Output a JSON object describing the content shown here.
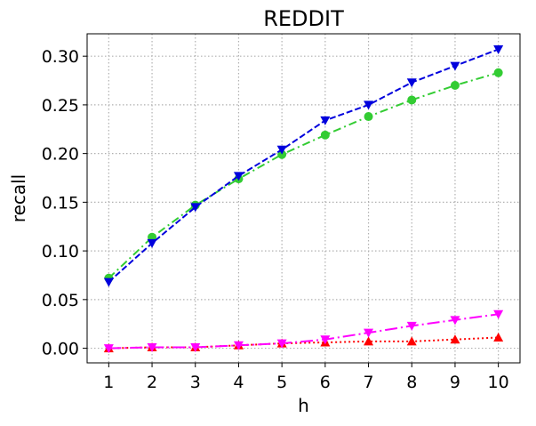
{
  "chart_data": {
    "type": "line",
    "title": "REDDIT",
    "xlabel": "h",
    "ylabel": "recall",
    "x": [
      1,
      2,
      3,
      4,
      5,
      6,
      7,
      8,
      9,
      10
    ],
    "xlim": [
      0.5,
      10.5
    ],
    "ylim": [
      -0.015,
      0.323
    ],
    "yticks": [
      0.0,
      0.05,
      0.1,
      0.15,
      0.2,
      0.25,
      0.3
    ],
    "ytick_labels": [
      "0.00",
      "0.05",
      "0.10",
      "0.15",
      "0.20",
      "0.25",
      "0.30"
    ],
    "xtick_labels": [
      "1",
      "2",
      "3",
      "4",
      "5",
      "6",
      "7",
      "8",
      "9",
      "10"
    ],
    "grid": true,
    "legend": "none",
    "series": [
      {
        "values": [
          0.072,
          0.114,
          0.147,
          0.174,
          0.199,
          0.219,
          0.238,
          0.255,
          0.27,
          0.283
        ],
        "color": "#33cc33",
        "marker": "circle",
        "dash": "dash-dot"
      },
      {
        "values": [
          0.068,
          0.108,
          0.145,
          0.177,
          0.204,
          0.234,
          0.25,
          0.273,
          0.29,
          0.307
        ],
        "color": "#0000dd",
        "marker": "triangle-down",
        "dash": "dashed"
      },
      {
        "values": [
          0.0,
          0.001,
          0.001,
          0.003,
          0.005,
          0.006,
          0.007,
          0.007,
          0.009,
          0.011
        ],
        "color": "#ff0000",
        "marker": "triangle-up",
        "dash": "dotted"
      },
      {
        "values": [
          0.0,
          0.001,
          0.001,
          0.003,
          0.005,
          0.009,
          0.016,
          0.023,
          0.029,
          0.035
        ],
        "color": "#ff00ff",
        "marker": "triangle-down",
        "dash": "long-dash-dot"
      }
    ]
  }
}
